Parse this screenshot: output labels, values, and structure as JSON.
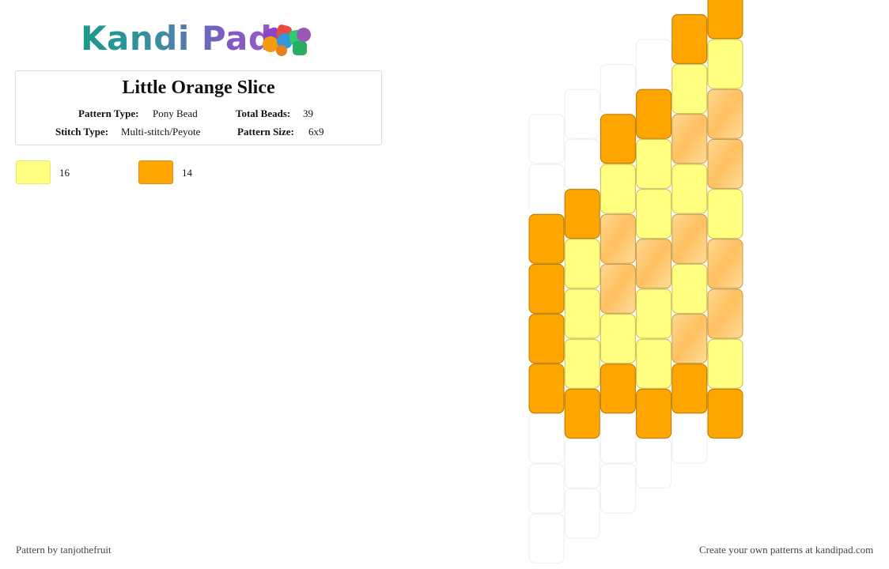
{
  "logo": {
    "text": "Kandi Pad"
  },
  "pattern": {
    "title": "Little Orange Slice",
    "type_label": "Pattern Type:",
    "type_value": "Pony Bead",
    "beads_label": "Total Beads:",
    "beads_value": "39",
    "stitch_label": "Stitch Type:",
    "stitch_value": "Multi-stitch/Peyote",
    "size_label": "Pattern Size:",
    "size_value": "6x9"
  },
  "legend": [
    {
      "color": "#ffff80",
      "count": "16"
    },
    {
      "color": "#ffa500",
      "count": "14"
    }
  ],
  "colors": {
    "yellow": "#ffff80",
    "orange": "#ffa500",
    "peach": "#ffc870",
    "empty": "#ffffff"
  },
  "grid": {
    "columns": 6,
    "rows": 10,
    "column_offset_rows": [
      2.5,
      2.0,
      1.5,
      1.0,
      0.5,
      0.0
    ],
    "cells": [
      [
        "e",
        "e",
        "e",
        "e",
        "e",
        "e",
        "e",
        "e",
        "e",
        "e"
      ],
      [
        "e",
        "e",
        "o",
        "y",
        "y",
        "y",
        "o",
        "e",
        "e",
        "e"
      ],
      [
        "e",
        "o",
        "y",
        "p",
        "p",
        "y",
        "o",
        "e",
        "e",
        "e"
      ],
      [
        "o",
        "y",
        "y",
        "p",
        "y",
        "y",
        "o",
        "e",
        "e",
        "e"
      ],
      [
        "o",
        "y",
        "p",
        "y",
        "p",
        "y",
        "y",
        "o",
        "e",
        "e"
      ],
      [
        "o",
        "y",
        "p",
        "p",
        "y",
        "p",
        "p",
        "y",
        "o",
        "e"
      ]
    ],
    "top_lead": [
      {
        "col": 0,
        "fill": "o",
        "at": 6
      },
      {
        "col": 0,
        "fill": "o",
        "at": 5
      },
      {
        "col": 0,
        "fill": "o",
        "at": 4
      },
      {
        "col": 0,
        "fill": "o",
        "at": 3
      }
    ]
  },
  "footer": {
    "left": "Pattern by tanjothefruit",
    "right": "Create your own patterns at kandipad.com"
  }
}
